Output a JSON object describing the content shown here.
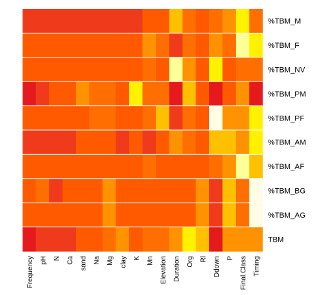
{
  "chart_data": {
    "type": "heatmap",
    "title": "",
    "xlabel": "",
    "ylabel": "",
    "grid": true,
    "legend": "none",
    "color_scale": [
      "#e41a1c",
      "#ef3b1c",
      "#ff5a00",
      "#ff6e00",
      "#ff9200",
      "#ffc000",
      "#fff200",
      "#ffff99",
      "#fffde6"
    ],
    "columns": [
      "Frequency",
      "pH",
      "N",
      "Ca",
      "sand",
      "Na",
      "Mg",
      "clay",
      "K",
      "Mn",
      "Elevation",
      "Duration",
      "Org",
      "Rl",
      "Ddown",
      "P",
      "Final.Class",
      "Timing"
    ],
    "rows": [
      "%TBM_M",
      "%TBM_F",
      "%TBM_NV",
      "%TBM_PM",
      "%TBM_PF",
      "%TBM_AM",
      "%TBM_AF",
      "%TBM_BG",
      "%TBM_AG",
      "TBM"
    ],
    "values": [
      [
        1,
        1,
        1,
        1,
        1,
        1,
        1,
        1,
        1,
        2,
        2,
        5,
        3,
        2,
        3,
        4,
        6,
        3
      ],
      [
        2,
        2,
        2,
        2,
        2,
        2,
        2,
        2,
        2,
        4,
        3,
        1,
        3,
        2,
        4,
        3,
        7,
        6
      ],
      [
        2,
        2,
        2,
        2,
        2,
        2,
        2,
        2,
        2,
        3,
        2,
        7,
        4,
        2,
        6,
        2,
        3,
        3
      ],
      [
        0,
        1,
        2,
        2,
        4,
        3,
        3,
        2,
        6,
        3,
        3,
        0,
        5,
        2,
        0,
        2,
        4,
        0
      ],
      [
        2,
        2,
        2,
        2,
        2,
        3,
        3,
        2,
        2,
        3,
        5,
        1,
        3,
        2,
        8,
        4,
        4,
        6
      ],
      [
        1,
        1,
        1,
        1,
        2,
        2,
        2,
        1,
        2,
        1,
        2,
        4,
        3,
        2,
        5,
        5,
        4,
        6
      ],
      [
        2,
        2,
        2,
        2,
        2,
        2,
        2,
        2,
        2,
        3,
        2,
        2,
        2,
        2,
        3,
        4,
        7,
        5
      ],
      [
        2,
        3,
        1,
        2,
        2,
        2,
        4,
        2,
        2,
        2,
        2,
        2,
        2,
        4,
        1,
        5,
        3,
        8
      ],
      [
        2,
        2,
        2,
        2,
        2,
        2,
        4,
        2,
        2,
        2,
        2,
        2,
        2,
        4,
        1,
        5,
        3,
        8
      ],
      [
        0,
        1,
        1,
        1,
        2,
        2,
        3,
        4,
        2,
        3,
        3,
        4,
        6,
        5,
        0,
        4,
        4,
        4
      ]
    ]
  }
}
